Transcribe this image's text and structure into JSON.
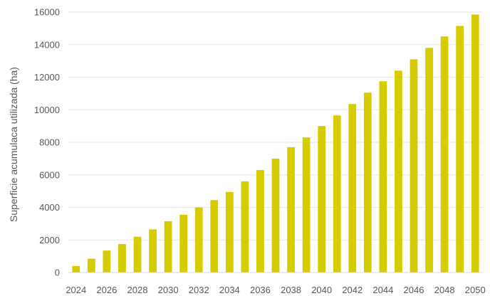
{
  "chart_data": {
    "type": "bar",
    "title": "",
    "xlabel": "",
    "ylabel": "Superficie acumulaca utilizada (ha)",
    "ylim": [
      0,
      16000
    ],
    "yticks": [
      0,
      2000,
      4000,
      6000,
      8000,
      10000,
      12000,
      14000,
      16000
    ],
    "xtick_labels": [
      "2024",
      "2026",
      "2028",
      "2030",
      "2032",
      "2034",
      "2036",
      "2038",
      "2040",
      "2042",
      "2044",
      "2046",
      "2048",
      "2050"
    ],
    "grid": true,
    "legend": "none",
    "bar_color": "#d6cd00",
    "categories": [
      "2024",
      "2025",
      "2026",
      "2027",
      "2028",
      "2029",
      "2030",
      "2031",
      "2032",
      "2033",
      "2034",
      "2035",
      "2036",
      "2037",
      "2038",
      "2039",
      "2040",
      "2041",
      "2042",
      "2043",
      "2044",
      "2045",
      "2046",
      "2047",
      "2048",
      "2049",
      "2050"
    ],
    "values": [
      400,
      850,
      1350,
      1750,
      2200,
      2650,
      3150,
      3550,
      4000,
      4450,
      4950,
      5600,
      6300,
      7000,
      7700,
      8300,
      9000,
      9650,
      10350,
      11050,
      11750,
      12400,
      13100,
      13800,
      14500,
      15150,
      15850
    ]
  }
}
